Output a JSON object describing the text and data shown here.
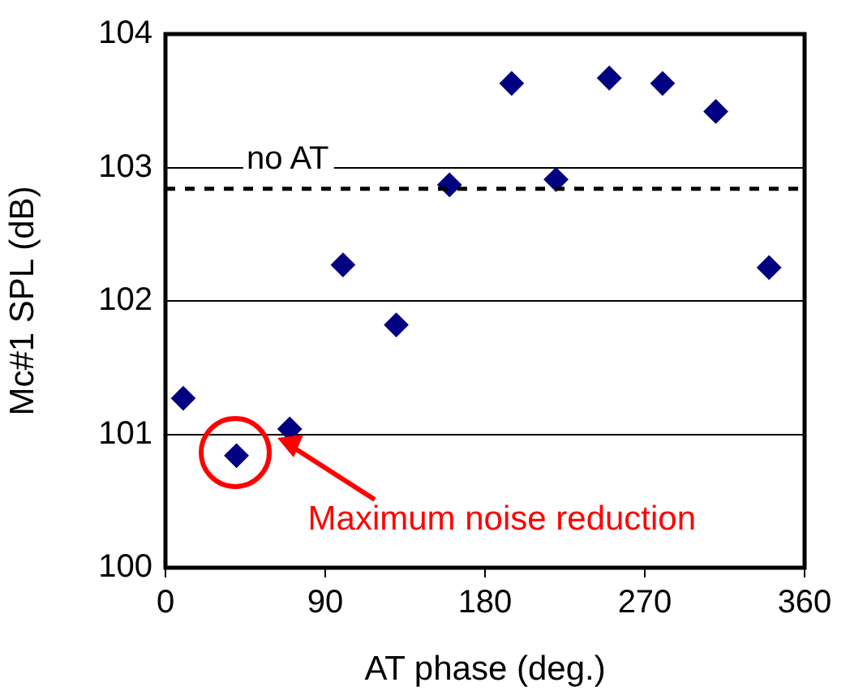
{
  "chart_data": {
    "type": "scatter",
    "xlabel": "AT phase (deg.)",
    "ylabel": "Mc#1 SPL (dB)",
    "x": [
      10,
      40,
      70,
      100,
      130,
      160,
      195,
      220,
      250,
      280,
      310,
      340
    ],
    "series": [
      {
        "color": "#000080",
        "values": [
          101.27,
          100.84,
          101.04,
          102.27,
          101.82,
          102.87,
          103.63,
          102.91,
          103.67,
          103.63,
          103.42,
          102.25
        ]
      }
    ],
    "xlim": [
      0,
      360
    ],
    "xticks": [
      0,
      90,
      180,
      270,
      360
    ],
    "ylim": [
      100,
      104
    ],
    "yticks": [
      100,
      101,
      102,
      103,
      104
    ],
    "grid": "y",
    "legend": false,
    "marker": "diamond",
    "ref_lines": [
      {
        "axis": "y",
        "value": 102.84,
        "label": "no AT",
        "color": "#000000",
        "line_style": "dashed"
      }
    ],
    "annotations": [
      {
        "text": "Maximum noise reduction",
        "x": 40,
        "y": 100.84
      }
    ]
  }
}
